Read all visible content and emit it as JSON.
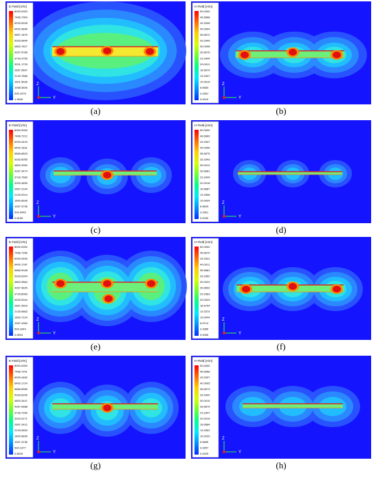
{
  "panels": [
    {
      "label": "(a)",
      "legend_title": "E Field [V/m]",
      "legend_values": [
        "8000.0000",
        "7466.7964",
        "6933.5928",
        "6400.3896",
        "5867.1875",
        "5333.9849",
        "4800.7817",
        "4267.5786",
        "3734.3755",
        "3201.1729",
        "2667.9697",
        "2134.7666",
        "1601.5635",
        "1068.3606",
        "535.1575",
        "1.9545"
      ]
    },
    {
      "label": "(b)",
      "legend_title": "H Field [A/m]",
      "legend_values": [
        "50.0000",
        "46.6668",
        "43.3336",
        "40.0004",
        "36.6672",
        "33.3340",
        "30.0008",
        "26.6676",
        "23.3344",
        "20.0011",
        "16.6679",
        "13.3347",
        "10.0015",
        "6.6683",
        "3.3351",
        "0.0019"
      ]
    },
    {
      "label": "(c)",
      "legend_title": "E Field [V/m]",
      "legend_values": [
        "8000.0000",
        "7466.7212",
        "6933.4424",
        "6400.1631",
        "5866.8843",
        "5333.6055",
        "4800.3262",
        "4267.0474",
        "3733.7683",
        "3200.4895",
        "2667.2104",
        "2133.9314",
        "1600.6526",
        "1067.3735",
        "534.0946",
        "0.8155"
      ]
    },
    {
      "label": "(d)",
      "legend_title": "H Field [A/m]",
      "legend_values": [
        "50.0000",
        "46.6669",
        "43.3337",
        "40.0006",
        "36.6675",
        "33.3343",
        "30.0012",
        "26.6681",
        "23.3349",
        "20.0018",
        "16.6687",
        "13.3356",
        "10.0024",
        "6.6693",
        "3.3361",
        "0.0030"
      ]
    },
    {
      "label": "(e)",
      "legend_title": "E Field [V/m]",
      "legend_values": [
        "8000.0000",
        "7466.7266",
        "6933.4526",
        "6400.1787",
        "5866.9048",
        "5333.6304",
        "4800.3564",
        "4267.0825",
        "3733.8083",
        "3200.5344",
        "2667.2603",
        "2133.9863",
        "1600.7124",
        "1067.4384",
        "534.1644",
        "0.8904"
      ]
    },
    {
      "label": "(f)",
      "legend_title": "H Field [A/m]",
      "legend_values": [
        "50.0000",
        "46.6670",
        "43.3341",
        "40.0011",
        "36.6681",
        "33.3352",
        "30.0022",
        "26.6692",
        "23.3363",
        "20.0033",
        "16.6704",
        "13.3374",
        "10.0044",
        "6.6714",
        "3.3385",
        "0.0055"
      ]
    },
    {
      "label": "(g)",
      "legend_title": "E Field [V/m]",
      "legend_values": [
        "8000.0000",
        "7466.7241",
        "6933.4482",
        "6400.1724",
        "5866.8965",
        "5333.6206",
        "4800.3447",
        "4267.0688",
        "3733.7930",
        "3200.5171",
        "2667.2412",
        "2133.9653",
        "1600.6895",
        "1067.4136",
        "534.1377",
        "0.8618"
      ]
    },
    {
      "label": "(h)",
      "legend_title": "H Field [A/m]",
      "legend_values": [
        "50.0000",
        "46.6668",
        "43.3337",
        "40.0005",
        "36.6673",
        "33.3342",
        "30.0010",
        "26.6679",
        "23.3347",
        "20.0015",
        "16.6684",
        "13.3352",
        "10.0020",
        "6.6689",
        "3.3357",
        "0.0025"
      ]
    }
  ],
  "axis_labels": {
    "z": "Z",
    "y": "Y"
  }
}
